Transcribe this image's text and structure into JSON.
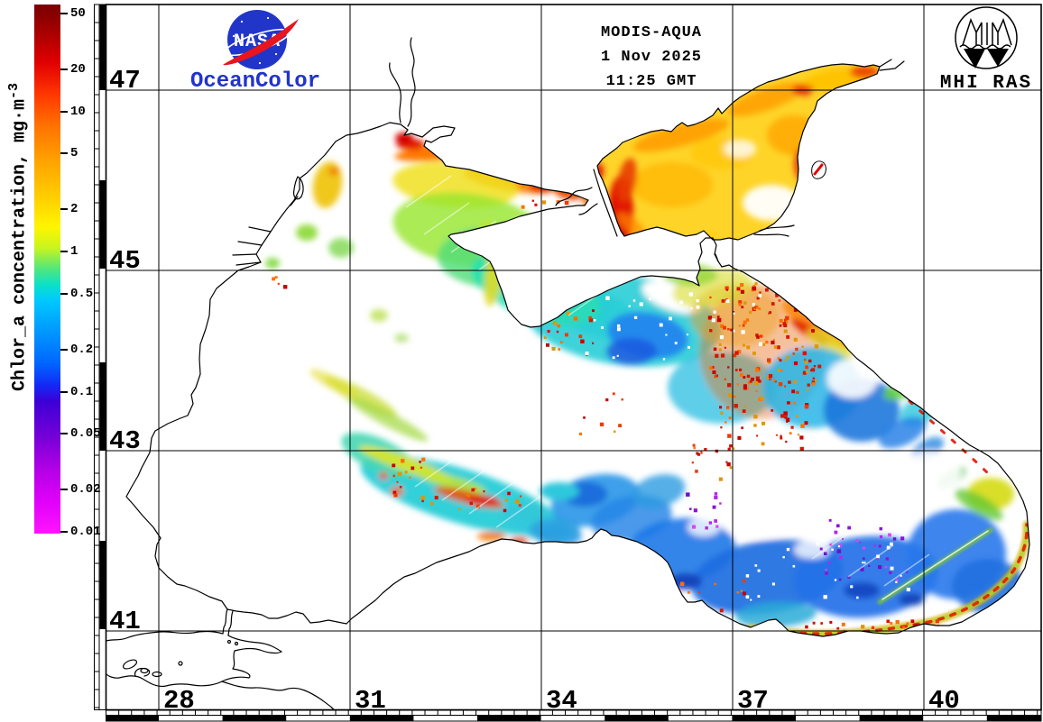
{
  "header": {
    "nasa": {
      "logo_text": "NASA",
      "sublabel": "OceanColor",
      "logo_blue": "#2136c8",
      "swoosh_red": "#e8141e",
      "sublabel_color": "#2233cc"
    },
    "product": {
      "satellite": "MODIS-AQUA",
      "date": "1 Nov 2025",
      "time": "11:25 GMT"
    },
    "institute": {
      "label": "MHI RAS"
    }
  },
  "colorbar": {
    "title": "Chlor_a concentration, mg·m",
    "title_exponent": "-3",
    "scale": "logarithmic",
    "tick_labels": [
      "50",
      "20",
      "10",
      "5",
      "2",
      "1",
      "0.5",
      "0.2",
      "0.1",
      "0.05",
      "0.02",
      "0.01"
    ],
    "tick_values": [
      50,
      20,
      10,
      5,
      2,
      1,
      0.5,
      0.2,
      0.1,
      0.05,
      0.02,
      0.01
    ],
    "gradient": [
      [
        0.0,
        "#780000"
      ],
      [
        0.05,
        "#a50000"
      ],
      [
        0.11,
        "#e10000"
      ],
      [
        0.17,
        "#ff3700"
      ],
      [
        0.23,
        "#ff7300"
      ],
      [
        0.3,
        "#ffa500"
      ],
      [
        0.37,
        "#ffd200"
      ],
      [
        0.42,
        "#fff500"
      ],
      [
        0.46,
        "#c8f51e"
      ],
      [
        0.5,
        "#50e67d"
      ],
      [
        0.53,
        "#0ae1c8"
      ],
      [
        0.56,
        "#00c8ff"
      ],
      [
        0.62,
        "#0096ff"
      ],
      [
        0.68,
        "#0064ff"
      ],
      [
        0.72,
        "#1428f5"
      ],
      [
        0.75,
        "#3c00d7"
      ],
      [
        0.82,
        "#7800d7"
      ],
      [
        0.88,
        "#b400e6"
      ],
      [
        0.94,
        "#e100fa"
      ],
      [
        1.0,
        "#ff14ff"
      ]
    ]
  },
  "axes": {
    "lat_labels": [
      "47",
      "45",
      "43",
      "41"
    ],
    "lon_labels": [
      "28",
      "31",
      "34",
      "37",
      "40"
    ]
  }
}
